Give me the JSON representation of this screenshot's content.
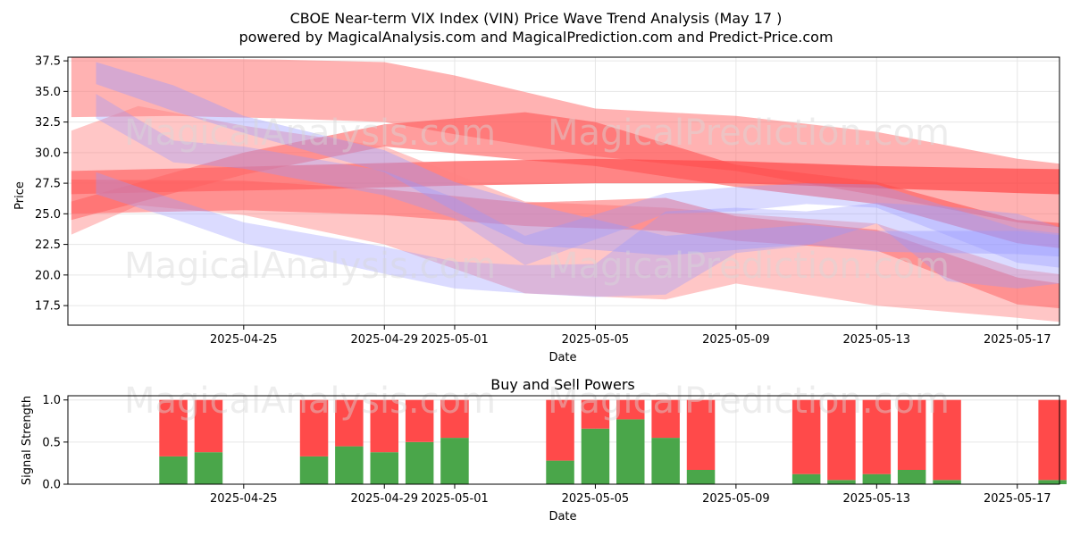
{
  "chart_data": [
    {
      "type": "area",
      "title": "CBOE Near-term VIX Index (VIN) Price Wave Trend Analysis (May 17 )",
      "subtitle": "powered by MagicalAnalysis.com and MagicalPrediction.com and Predict-Price.com",
      "xlabel": "Date",
      "ylabel": "Price",
      "xlim": [
        -3.0,
        25.2
      ],
      "ylim": [
        15.9,
        37.8
      ],
      "grid": true,
      "x_tick_values": [
        2,
        6,
        8,
        12,
        16,
        20,
        24
      ],
      "x_tick_labels": [
        "2025-04-25",
        "2025-04-29",
        "2025-05-01",
        "2025-05-05",
        "2025-05-09",
        "2025-05-13",
        "2025-05-17"
      ],
      "y_ticks": [
        17.5,
        20.0,
        22.5,
        25.0,
        27.5,
        30.0,
        32.5,
        35.0,
        37.5
      ],
      "y_tick_labels": [
        "17.5",
        "20.0",
        "22.5",
        "25.0",
        "27.5",
        "30.0",
        "32.5",
        "35.0",
        "37.5"
      ],
      "watermarks": [
        "MagicalAnalysis.com",
        "MagicalPrediction.com",
        "MagicalAnalysis.com",
        "MagicalPrediction.com"
      ],
      "bands": [
        {
          "color": "#ff6666",
          "opacity": 0.5,
          "upper": [
            [
              -2.9,
              37.8
            ],
            [
              0,
              37.7
            ],
            [
              3,
              37.6
            ],
            [
              6,
              37.4
            ],
            [
              8,
              36.3
            ],
            [
              12,
              33.6
            ],
            [
              16,
              33.0
            ],
            [
              20,
              31.7
            ],
            [
              24,
              29.5
            ],
            [
              26.4,
              28.7
            ]
          ],
          "lower": [
            [
              -2.9,
              32.9
            ],
            [
              0,
              33.0
            ],
            [
              3,
              32.8
            ],
            [
              6,
              32.5
            ],
            [
              8,
              31.5
            ],
            [
              12,
              29.7
            ],
            [
              16,
              28.5
            ],
            [
              20,
              26.5
            ],
            [
              24,
              24.3
            ],
            [
              26.4,
              23.5
            ]
          ]
        },
        {
          "color": "#ff3333",
          "opacity": 0.6,
          "upper": [
            [
              -2.9,
              28.5
            ],
            [
              0,
              28.7
            ],
            [
              4,
              29.0
            ],
            [
              8,
              29.3
            ],
            [
              12,
              29.5
            ],
            [
              16,
              29.3
            ],
            [
              20,
              28.9
            ],
            [
              24,
              28.7
            ],
            [
              26.4,
              28.6
            ]
          ],
          "lower": [
            [
              -2.9,
              26.6
            ],
            [
              0,
              26.8
            ],
            [
              4,
              27.0
            ],
            [
              8,
              27.3
            ],
            [
              12,
              27.5
            ],
            [
              16,
              27.5
            ],
            [
              20,
              27.1
            ],
            [
              24,
              26.7
            ],
            [
              26.4,
              26.5
            ]
          ]
        },
        {
          "color": "#ff4d4d",
          "opacity": 0.55,
          "upper": [
            [
              -2.9,
              26.0
            ],
            [
              2,
              30.0
            ],
            [
              6,
              32.3
            ],
            [
              10,
              33.3
            ],
            [
              12,
              32.5
            ],
            [
              16,
              29.0
            ],
            [
              20,
              27.6
            ],
            [
              24,
              24.5
            ],
            [
              26.4,
              24.0
            ]
          ],
          "lower": [
            [
              -2.9,
              24.5
            ],
            [
              2,
              28.2
            ],
            [
              6,
              30.5
            ],
            [
              10,
              29.4
            ],
            [
              12,
              28.9
            ],
            [
              16,
              27.2
            ],
            [
              20,
              25.8
            ],
            [
              24,
              22.6
            ],
            [
              26.4,
              21.8
            ]
          ]
        },
        {
          "color": "#ff8080",
          "opacity": 0.45,
          "upper": [
            [
              -2.9,
              31.8
            ],
            [
              -1,
              33.8
            ],
            [
              2,
              32.2
            ],
            [
              6,
              30.5
            ],
            [
              10,
              26.0
            ],
            [
              14,
              25.5
            ],
            [
              16,
              25.0
            ],
            [
              20,
              24.2
            ],
            [
              24,
              20.5
            ],
            [
              26.2,
              19.7
            ]
          ],
          "lower": [
            [
              -2.9,
              23.3
            ],
            [
              -1,
              25.7
            ],
            [
              2,
              24.9
            ],
            [
              6,
              22.5
            ],
            [
              10,
              18.5
            ],
            [
              14,
              18.0
            ],
            [
              16,
              19.3
            ],
            [
              20,
              17.5
            ],
            [
              24,
              16.5
            ],
            [
              26.2,
              15.9
            ]
          ]
        },
        {
          "color": "#ff5c5c",
          "opacity": 0.5,
          "upper": [
            [
              -2.9,
              27.8
            ],
            [
              2,
              27.7
            ],
            [
              6,
              27.0
            ],
            [
              10,
              25.9
            ],
            [
              14,
              26.3
            ],
            [
              16,
              24.8
            ],
            [
              20,
              23.7
            ],
            [
              24,
              19.8
            ],
            [
              26.2,
              18.9
            ]
          ],
          "lower": [
            [
              -2.9,
              25.0
            ],
            [
              2,
              25.3
            ],
            [
              6,
              24.9
            ],
            [
              10,
              24.0
            ],
            [
              14,
              23.6
            ],
            [
              16,
              22.8
            ],
            [
              20,
              22.0
            ],
            [
              24,
              17.6
            ],
            [
              26.2,
              17.0
            ]
          ]
        },
        {
          "color": "#9999ff",
          "opacity": 0.4,
          "upper": [
            [
              -2.2,
              37.4
            ],
            [
              0,
              35.5
            ],
            [
              2,
              33.0
            ],
            [
              6,
              30.2
            ],
            [
              8,
              27.6
            ],
            [
              10,
              25.9
            ],
            [
              14,
              23.2
            ],
            [
              18,
              24.1
            ],
            [
              20,
              23.6
            ],
            [
              24,
              23.6
            ],
            [
              26.4,
              22.9
            ]
          ],
          "lower": [
            [
              -2.2,
              35.6
            ],
            [
              0,
              33.4
            ],
            [
              2,
              31.6
            ],
            [
              6,
              28.4
            ],
            [
              8,
              25.2
            ],
            [
              10,
              22.5
            ],
            [
              14,
              21.6
            ],
            [
              18,
              22.5
            ],
            [
              20,
              21.9
            ],
            [
              24,
              21.7
            ],
            [
              26.4,
              21.3
            ]
          ]
        },
        {
          "color": "#9999ff",
          "opacity": 0.35,
          "upper": [
            [
              -2.2,
              34.8
            ],
            [
              0,
              31.0
            ],
            [
              2,
              30.5
            ],
            [
              6,
              28.5
            ],
            [
              8,
              26.3
            ],
            [
              10,
              23.2
            ],
            [
              14,
              26.7
            ],
            [
              16,
              27.2
            ],
            [
              18,
              27.5
            ],
            [
              20,
              27.4
            ],
            [
              24,
              23.8
            ],
            [
              26.4,
              23.0
            ]
          ],
          "lower": [
            [
              -2.2,
              32.8
            ],
            [
              0,
              29.2
            ],
            [
              2,
              28.7
            ],
            [
              6,
              26.5
            ],
            [
              8,
              24.6
            ],
            [
              10,
              20.8
            ],
            [
              14,
              25.0
            ],
            [
              16,
              25.2
            ],
            [
              18,
              25.8
            ],
            [
              20,
              25.5
            ],
            [
              24,
              21.0
            ],
            [
              26.4,
              20.2
            ]
          ]
        },
        {
          "color": "#9999ff",
          "opacity": 0.35,
          "upper": [
            [
              -2.2,
              28.4
            ],
            [
              0,
              26.2
            ],
            [
              2,
              24.3
            ],
            [
              6,
              22.3
            ],
            [
              8,
              21.1
            ],
            [
              10,
              20.8
            ],
            [
              12,
              20.9
            ],
            [
              14,
              25.2
            ],
            [
              16,
              25.5
            ],
            [
              18,
              25.2
            ],
            [
              20,
              25.9
            ],
            [
              22,
              25.6
            ],
            [
              24,
              25.0
            ],
            [
              26.4,
              22.8
            ]
          ],
          "lower": [
            [
              -2.2,
              26.6
            ],
            [
              0,
              24.6
            ],
            [
              2,
              22.6
            ],
            [
              6,
              20.1
            ],
            [
              8,
              18.9
            ],
            [
              10,
              18.5
            ],
            [
              12,
              18.2
            ],
            [
              14,
              18.4
            ],
            [
              16,
              21.8
            ],
            [
              18,
              22.4
            ],
            [
              20,
              24.2
            ],
            [
              22,
              19.5
            ],
            [
              24,
              18.9
            ],
            [
              26.4,
              19.7
            ]
          ]
        }
      ]
    },
    {
      "type": "bar",
      "title": "Buy and Sell Powers",
      "xlabel": "Date",
      "ylabel": "Signal Strength",
      "xlim": [
        -3.0,
        25.2
      ],
      "ylim": [
        0,
        1.05
      ],
      "grid": true,
      "x_tick_values": [
        2,
        6,
        8,
        12,
        16,
        20,
        24
      ],
      "x_tick_labels": [
        "2025-04-25",
        "2025-04-29",
        "2025-05-01",
        "2025-05-05",
        "2025-05-09",
        "2025-05-13",
        "2025-05-17"
      ],
      "y_ticks": [
        0.0,
        0.5,
        1.0
      ],
      "y_tick_labels": [
        "0.0",
        "0.5",
        "1.0"
      ],
      "colors": {
        "buy": "#4aa64a",
        "sell": "#ff4a4a"
      },
      "x": [
        0,
        1,
        4,
        5,
        6,
        7,
        8,
        11,
        12,
        13,
        14,
        15,
        18,
        19,
        20,
        21,
        22,
        25
      ],
      "series": [
        {
          "name": "Buy",
          "values": [
            0.33,
            0.38,
            0.33,
            0.45,
            0.38,
            0.5,
            0.55,
            0.28,
            0.66,
            0.77,
            0.55,
            0.17,
            0.12,
            0.05,
            0.12,
            0.17,
            0.05,
            0.05
          ]
        },
        {
          "name": "Sell",
          "values": [
            0.67,
            0.62,
            0.67,
            0.55,
            0.62,
            0.5,
            0.45,
            0.72,
            0.34,
            0.23,
            0.45,
            0.83,
            0.88,
            0.95,
            0.88,
            0.83,
            0.95,
            0.95
          ]
        }
      ]
    }
  ]
}
